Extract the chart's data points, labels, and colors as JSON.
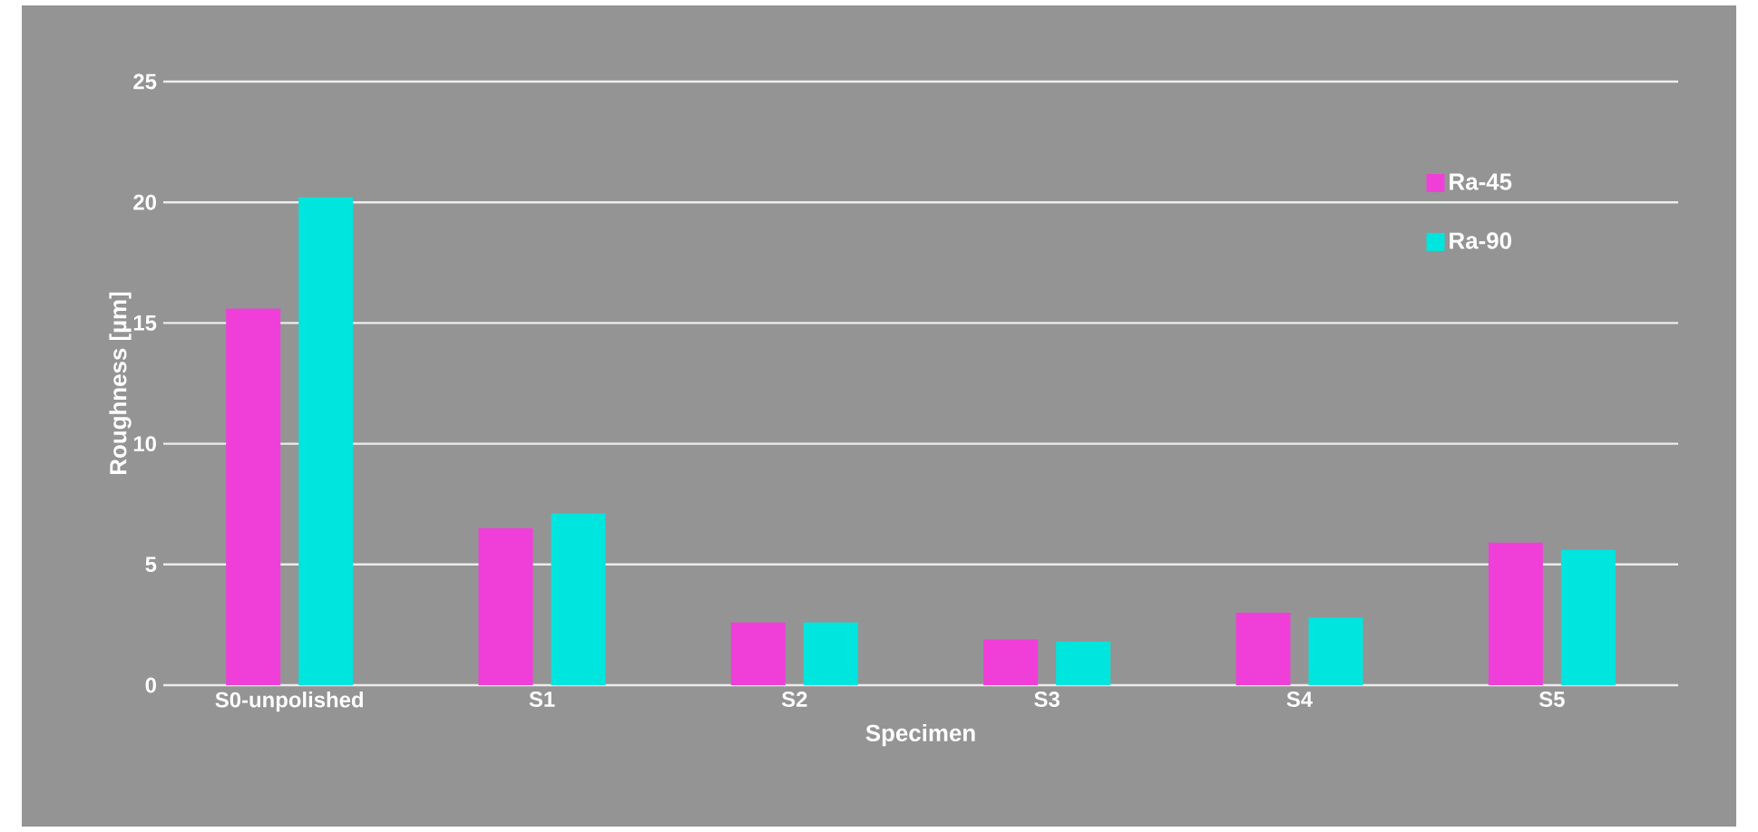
{
  "chart_data": {
    "type": "bar",
    "xlabel": "Specimen",
    "ylabel": "Roughness [µm]",
    "categories": [
      "S0-unpolished",
      "S1",
      "S2",
      "S3",
      "S4",
      "S5"
    ],
    "series": [
      {
        "name": "Ra-45",
        "color": "#f03fd9",
        "values": [
          15.6,
          6.5,
          2.6,
          1.9,
          3.0,
          5.9
        ]
      },
      {
        "name": "Ra-90",
        "color": "#00e5dd",
        "values": [
          20.2,
          7.1,
          2.6,
          1.8,
          2.8,
          5.6
        ]
      }
    ],
    "ylim": [
      0,
      25
    ],
    "yticks": [
      0,
      5,
      10,
      15,
      20,
      25
    ],
    "grid": "y",
    "legend": "top right"
  }
}
